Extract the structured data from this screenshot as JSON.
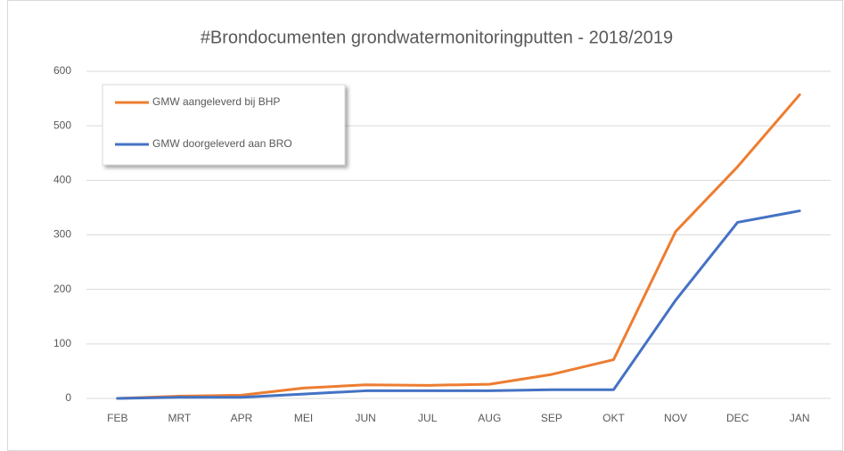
{
  "chart_data": {
    "type": "line",
    "title": "#Brondocumenten grondwatermonitoringputten - 2018/2019",
    "categories": [
      "FEB",
      "MRT",
      "APR",
      "MEI",
      "JUN",
      "JUL",
      "AUG",
      "SEP",
      "OKT",
      "NOV",
      "DEC",
      "JAN"
    ],
    "series": [
      {
        "name": "GMW aangeleverd bij BHP",
        "color": "#ed7d31",
        "values": [
          0,
          4,
          6,
          19,
          25,
          24,
          26,
          44,
          71,
          306,
          425,
          557
        ]
      },
      {
        "name": "GMW doorgeleverd aan BRO",
        "color": "#4472c4",
        "values": [
          0,
          2,
          2,
          8,
          14,
          14,
          14,
          16,
          16,
          180,
          323,
          344
        ]
      }
    ],
    "ylim": [
      0,
      600
    ],
    "yticks": [
      0,
      100,
      200,
      300,
      400,
      500,
      600
    ],
    "grid": true,
    "legend": "upper left"
  }
}
